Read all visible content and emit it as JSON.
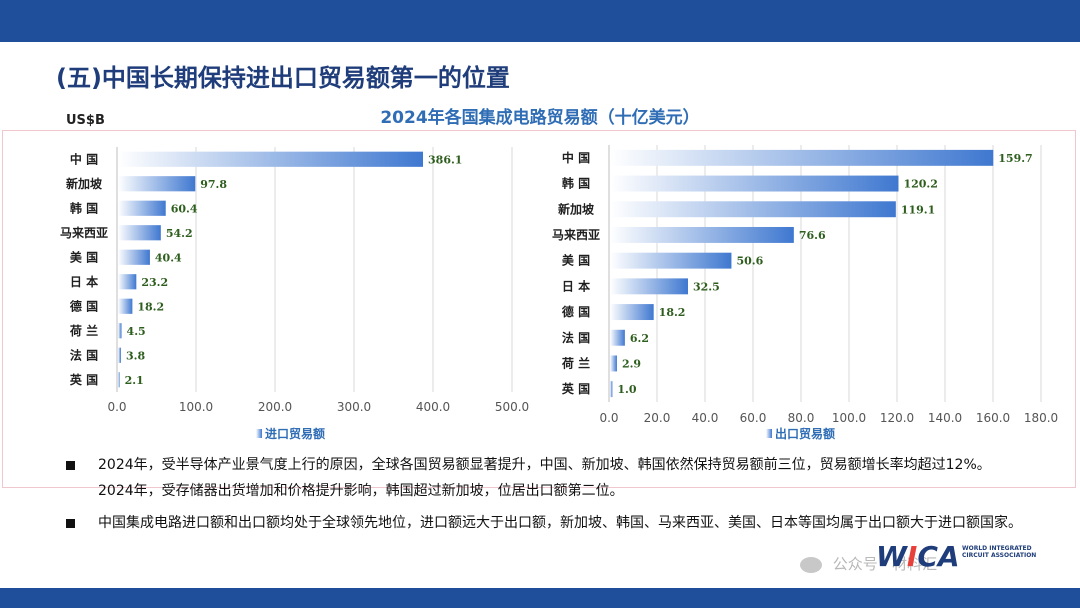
{
  "header": {
    "title": "(五)中国长期保持进出口贸易额第一的位置"
  },
  "chart_heading": "2024年各国集成电路贸易额（十亿美元）",
  "unit_label": "US$B",
  "colors": {
    "bar": "#3f78d0",
    "bar_fade": "#ffffff",
    "value": "#2e5e1e",
    "band": "#1f4e9b"
  },
  "chart_data": [
    {
      "type": "bar",
      "orientation": "horizontal",
      "categories": [
        "中 国",
        "新加坡",
        "韩 国",
        "马来西亚",
        "美 国",
        "日 本",
        "德 国",
        "荷 兰",
        "法 国",
        "英 国"
      ],
      "series": [
        {
          "name": "进口贸易额",
          "values": [
            386.1,
            97.8,
            60.4,
            54.2,
            40.4,
            23.2,
            18.2,
            4.5,
            3.8,
            2.1
          ]
        }
      ],
      "value_labels": [
        "386.1",
        "97.8",
        "60.4",
        "54.2",
        "40.4",
        "23.2",
        "18.2",
        "4.5",
        "3.8",
        "2.1"
      ],
      "xlim": [
        0,
        500
      ],
      "xticks": [
        "0.0",
        "100.0",
        "200.0",
        "300.0",
        "400.0",
        "500.0"
      ],
      "xtick_values": [
        0,
        100,
        200,
        300,
        400,
        500
      ],
      "grid": true,
      "legend": "bottom-left"
    },
    {
      "type": "bar",
      "orientation": "horizontal",
      "categories": [
        "中 国",
        "韩 国",
        "新加坡",
        "马来西亚",
        "美 国",
        "日 本",
        "德 国",
        "法 国",
        "荷 兰",
        "英 国"
      ],
      "series": [
        {
          "name": "出口贸易额",
          "values": [
            159.7,
            120.2,
            119.1,
            76.6,
            50.6,
            32.5,
            18.2,
            6.2,
            2.9,
            1.0
          ]
        }
      ],
      "value_labels": [
        "159.7",
        "120.2",
        "119.1",
        "76.6",
        "50.6",
        "32.5",
        "18.2",
        "6.2",
        "2.9",
        "1.0"
      ],
      "xlim": [
        0,
        180
      ],
      "xticks": [
        "0.0",
        "20.0",
        "40.0",
        "60.0",
        "80.0",
        "100.0",
        "120.0",
        "140.0",
        "160.0",
        "180.0"
      ],
      "xtick_values": [
        0,
        20,
        40,
        60,
        80,
        100,
        120,
        140,
        160,
        180
      ],
      "grid": true,
      "legend": "bottom-left"
    }
  ],
  "bullets": [
    "2024年，受半导体产业景气度上行的原因，全球各国贸易额显著提升，中国、新加坡、韩国依然保持贸易额前三位，贸易额增长率均超过12%。2024年，受存储器出货增加和价格提升影响，韩国超过新加坡，位居出口额第二位。",
    "中国集成电路进口额和出口额均处于全球领先地位，进口额远大于出口额，新加坡、韩国、马来西亚、美国、日本等国均属于出口额大于进口额国家。"
  ],
  "watermark": {
    "text": "公众号 · 材料汇"
  },
  "logo": {
    "text": "WICA",
    "subtitle": "WORLD INTEGRATED CIRCUIT ASSOCIATION"
  }
}
